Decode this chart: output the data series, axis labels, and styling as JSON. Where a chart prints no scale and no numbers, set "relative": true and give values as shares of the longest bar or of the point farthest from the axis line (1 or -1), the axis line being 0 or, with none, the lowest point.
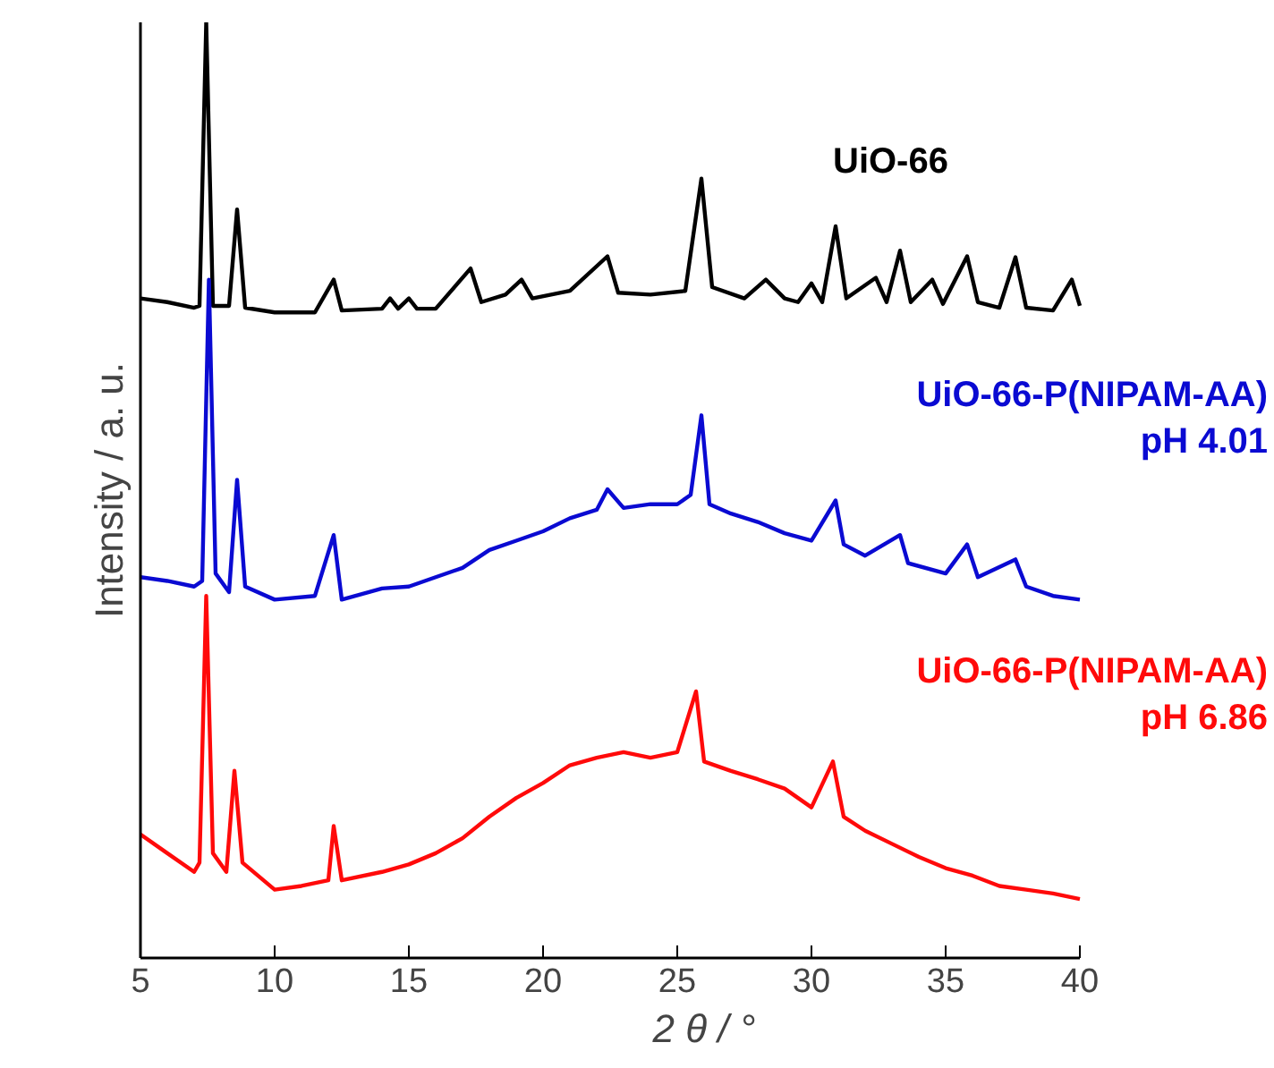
{
  "chart_data": {
    "type": "line",
    "relative": true,
    "xlabel": "2 θ / °",
    "ylabel": "Intensity / a. u.",
    "xlim": [
      5,
      40
    ],
    "xticks": [
      5,
      10,
      15,
      20,
      25,
      30,
      35,
      40
    ],
    "grid": false,
    "marker": "none",
    "line_style": "solid",
    "series": [
      {
        "name": "UiO-66",
        "color": "#000000",
        "x": [
          5,
          6,
          7,
          7.2,
          7.45,
          7.7,
          8.3,
          8.6,
          8.9,
          10,
          11.5,
          12.2,
          12.5,
          14,
          14.3,
          14.6,
          15,
          15.3,
          16,
          17.3,
          17.7,
          18.6,
          19.2,
          19.6,
          21,
          22.4,
          22.8,
          24,
          25.3,
          25.9,
          26.3,
          27.5,
          28.3,
          29,
          29.5,
          30,
          30.4,
          30.9,
          31.3,
          32.4,
          32.8,
          33.3,
          33.7,
          34.5,
          34.9,
          35.8,
          36.2,
          37,
          37.6,
          38,
          39,
          39.7,
          40
        ],
        "values": [
          0.705,
          0.701,
          0.695,
          0.697,
          1.0,
          0.697,
          0.697,
          0.8,
          0.695,
          0.69,
          0.69,
          0.725,
          0.692,
          0.694,
          0.705,
          0.694,
          0.705,
          0.694,
          0.694,
          0.737,
          0.701,
          0.709,
          0.725,
          0.705,
          0.713,
          0.75,
          0.711,
          0.709,
          0.713,
          0.833,
          0.717,
          0.705,
          0.725,
          0.705,
          0.701,
          0.721,
          0.701,
          0.782,
          0.705,
          0.727,
          0.701,
          0.756,
          0.701,
          0.725,
          0.699,
          0.75,
          0.701,
          0.695,
          0.749,
          0.695,
          0.692,
          0.725,
          0.697
        ]
      },
      {
        "name": "UiO-66-P(NIPAM-AA)\npH 4.01",
        "color": "#0a0ad2",
        "x": [
          5,
          6,
          7,
          7.3,
          7.55,
          7.8,
          8.3,
          8.6,
          8.9,
          10,
          11.5,
          12.2,
          12.5,
          14,
          15,
          16,
          17,
          18,
          19,
          20,
          21,
          22,
          22.4,
          23,
          24,
          25,
          25.5,
          25.9,
          26.2,
          27,
          28,
          29,
          30,
          30.9,
          31.2,
          32,
          33.3,
          33.6,
          35,
          35.8,
          36.2,
          37.6,
          38,
          39,
          40
        ],
        "values": [
          0.407,
          0.403,
          0.397,
          0.403,
          0.725,
          0.411,
          0.391,
          0.511,
          0.397,
          0.383,
          0.387,
          0.452,
          0.383,
          0.395,
          0.397,
          0.407,
          0.417,
          0.436,
          0.446,
          0.456,
          0.47,
          0.479,
          0.501,
          0.481,
          0.485,
          0.485,
          0.495,
          0.58,
          0.485,
          0.475,
          0.466,
          0.454,
          0.446,
          0.489,
          0.442,
          0.43,
          0.452,
          0.422,
          0.411,
          0.442,
          0.407,
          0.426,
          0.397,
          0.387,
          0.383
        ]
      },
      {
        "name": "UiO-66-P(NIPAM-AA)\npH 6.86",
        "color": "#ff0a0a",
        "x": [
          5,
          6,
          7,
          7.2,
          7.45,
          7.7,
          8.2,
          8.5,
          8.8,
          10,
          11,
          12,
          12.2,
          12.5,
          14,
          15,
          16,
          17,
          18,
          19,
          20,
          21,
          22,
          23,
          24,
          25,
          25.7,
          26,
          27,
          28,
          29,
          30,
          30.8,
          31.2,
          32,
          33,
          34,
          35,
          36,
          37,
          38,
          39,
          40
        ],
        "values": [
          0.132,
          0.112,
          0.092,
          0.102,
          0.387,
          0.112,
          0.092,
          0.2,
          0.102,
          0.073,
          0.077,
          0.083,
          0.141,
          0.083,
          0.092,
          0.1,
          0.112,
          0.128,
          0.151,
          0.171,
          0.187,
          0.206,
          0.214,
          0.22,
          0.214,
          0.22,
          0.285,
          0.21,
          0.2,
          0.191,
          0.181,
          0.161,
          0.21,
          0.151,
          0.136,
          0.122,
          0.108,
          0.096,
          0.088,
          0.077,
          0.073,
          0.069,
          0.063
        ]
      }
    ]
  }
}
